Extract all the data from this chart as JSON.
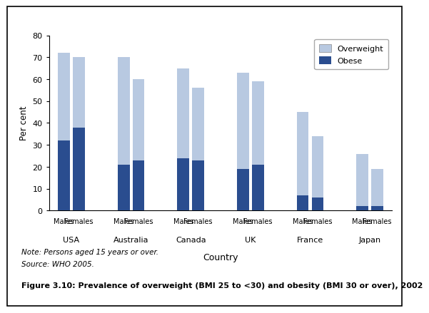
{
  "countries": [
    "USA",
    "Australia",
    "Canada",
    "UK",
    "France",
    "Japan"
  ],
  "groups": [
    "Males",
    "Females",
    "Males",
    "Females",
    "Males",
    "Females",
    "Males",
    "Females",
    "Males",
    "Females",
    "Males",
    "Females"
  ],
  "obese": [
    32,
    38,
    21,
    23,
    24,
    23,
    19,
    21,
    7,
    6,
    2,
    2
  ],
  "overweight_total": [
    72,
    70,
    70,
    60,
    65,
    56,
    63,
    59,
    45,
    34,
    26,
    19
  ],
  "color_overweight": "#b8c9e1",
  "color_obese": "#2a4d8f",
  "ylabel": "Per cent",
  "xlabel": "Country",
  "ylim": [
    0,
    80
  ],
  "yticks": [
    0,
    10,
    20,
    30,
    40,
    50,
    60,
    70,
    80
  ],
  "legend_overweight": "Overweight",
  "legend_obese": "Obese",
  "note_line1": "Note: Persons aged 15 years or over.",
  "note_line2": "Source: WHO 2005.",
  "figure_caption": "Figure 3.10: Prevalence of overweight (BMI 25 to <30) and obesity (BMI 30 or over), 2002",
  "country_labels": [
    "USA",
    "Australia",
    "Canada",
    "UK",
    "France",
    "Japan"
  ],
  "country_pair_centers": [
    1.5,
    5.5,
    9.5,
    13.5,
    17.5,
    21.5
  ],
  "bar_positions": [
    1,
    2,
    5,
    6,
    9,
    10,
    13,
    14,
    17,
    18,
    21,
    22
  ],
  "bar_width": 0.8
}
